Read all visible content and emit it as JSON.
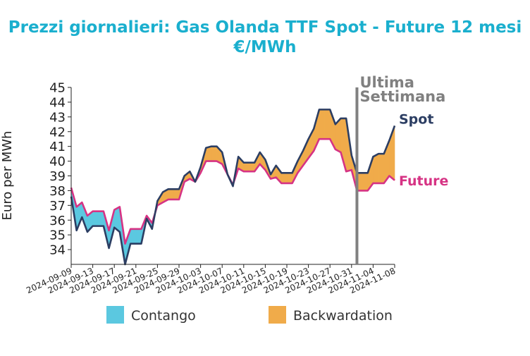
{
  "chart_data": {
    "type": "line",
    "title": "Prezzi giornalieri: Gas Olanda TTF Spot - Future 12 mesi",
    "subtitle": "€/MWh",
    "ylabel": "Euro per MWh",
    "xlabel": "",
    "ylim": [
      33,
      45
    ],
    "yticks": [
      34,
      35,
      36,
      37,
      38,
      39,
      40,
      41,
      42,
      43,
      44,
      45
    ],
    "xlim": [
      "2024-09-09",
      "2024-11-08"
    ],
    "xticks": [
      "2024-09-09",
      "2024-09-13",
      "2024-09-17",
      "2024-09-21",
      "2024-09-25",
      "2024-09-29",
      "2024-10-03",
      "2024-10-07",
      "2024-10-11",
      "2024-10-15",
      "2024-10-19",
      "2024-10-23",
      "2024-10-27",
      "2024-10-31",
      "2024-11-04",
      "2024-11-08"
    ],
    "grid": false,
    "legend_placement": "bottom",
    "colors": {
      "spot": "#2c3e63",
      "future": "#d63384",
      "contango": "#5bc8e0",
      "backwardation": "#f0ab4a",
      "vline": "#808080"
    },
    "legend": [
      {
        "label": "Contango",
        "color": "#5bc8e0"
      },
      {
        "label": "Backwardation",
        "color": "#f0ab4a"
      }
    ],
    "annotation": {
      "line1": "Ultima",
      "line2": "Settimana",
      "date": "2024-11-01"
    },
    "end_labels": {
      "spot": "Spot",
      "future": "Future"
    },
    "series": [
      {
        "name": "Spot",
        "points": [
          [
            "2024-09-09",
            37.6
          ],
          [
            "2024-09-10",
            35.3
          ],
          [
            "2024-09-11",
            36.2
          ],
          [
            "2024-09-12",
            35.2
          ],
          [
            "2024-09-13",
            35.6
          ],
          [
            "2024-09-14",
            35.6
          ],
          [
            "2024-09-15",
            35.6
          ],
          [
            "2024-09-16",
            34.1
          ],
          [
            "2024-09-17",
            35.5
          ],
          [
            "2024-09-18",
            35.2
          ],
          [
            "2024-09-19",
            33.0
          ],
          [
            "2024-09-20",
            34.4
          ],
          [
            "2024-09-21",
            34.4
          ],
          [
            "2024-09-22",
            34.4
          ],
          [
            "2024-09-23",
            36.1
          ],
          [
            "2024-09-24",
            35.4
          ],
          [
            "2024-09-25",
            37.3
          ],
          [
            "2024-09-26",
            37.9
          ],
          [
            "2024-09-27",
            38.1
          ],
          [
            "2024-09-28",
            38.1
          ],
          [
            "2024-09-29",
            38.1
          ],
          [
            "2024-09-30",
            39.0
          ],
          [
            "2024-10-01",
            39.3
          ],
          [
            "2024-10-02",
            38.6
          ],
          [
            "2024-10-03",
            39.6
          ],
          [
            "2024-10-04",
            40.9
          ],
          [
            "2024-10-05",
            41.0
          ],
          [
            "2024-10-06",
            41.0
          ],
          [
            "2024-10-07",
            40.6
          ],
          [
            "2024-10-08",
            39.1
          ],
          [
            "2024-10-09",
            38.3
          ],
          [
            "2024-10-10",
            40.3
          ],
          [
            "2024-10-11",
            39.9
          ],
          [
            "2024-10-12",
            39.9
          ],
          [
            "2024-10-13",
            39.9
          ],
          [
            "2024-10-14",
            40.6
          ],
          [
            "2024-10-15",
            40.1
          ],
          [
            "2024-10-16",
            39.1
          ],
          [
            "2024-10-17",
            39.7
          ],
          [
            "2024-10-18",
            39.2
          ],
          [
            "2024-10-19",
            39.2
          ],
          [
            "2024-10-20",
            39.2
          ],
          [
            "2024-10-21",
            40.0
          ],
          [
            "2024-10-22",
            40.7
          ],
          [
            "2024-10-23",
            41.5
          ],
          [
            "2024-10-24",
            42.2
          ],
          [
            "2024-10-25",
            43.5
          ],
          [
            "2024-10-26",
            43.5
          ],
          [
            "2024-10-27",
            43.5
          ],
          [
            "2024-10-28",
            42.5
          ],
          [
            "2024-10-29",
            42.9
          ],
          [
            "2024-10-30",
            42.9
          ],
          [
            "2024-10-31",
            40.4
          ],
          [
            "2024-11-01",
            39.2
          ],
          [
            "2024-11-02",
            39.2
          ],
          [
            "2024-11-03",
            39.2
          ],
          [
            "2024-11-04",
            40.3
          ],
          [
            "2024-11-05",
            40.5
          ],
          [
            "2024-11-06",
            40.5
          ],
          [
            "2024-11-07",
            41.4
          ],
          [
            "2024-11-08",
            42.4
          ]
        ]
      },
      {
        "name": "Future",
        "points": [
          [
            "2024-09-09",
            38.2
          ],
          [
            "2024-09-10",
            36.9
          ],
          [
            "2024-09-11",
            37.2
          ],
          [
            "2024-09-12",
            36.3
          ],
          [
            "2024-09-13",
            36.6
          ],
          [
            "2024-09-14",
            36.6
          ],
          [
            "2024-09-15",
            36.6
          ],
          [
            "2024-09-16",
            35.3
          ],
          [
            "2024-09-17",
            36.7
          ],
          [
            "2024-09-18",
            36.9
          ],
          [
            "2024-09-19",
            34.4
          ],
          [
            "2024-09-20",
            35.4
          ],
          [
            "2024-09-21",
            35.4
          ],
          [
            "2024-09-22",
            35.4
          ],
          [
            "2024-09-23",
            36.3
          ],
          [
            "2024-09-24",
            35.8
          ],
          [
            "2024-09-25",
            37.0
          ],
          [
            "2024-09-26",
            37.2
          ],
          [
            "2024-09-27",
            37.4
          ],
          [
            "2024-09-28",
            37.4
          ],
          [
            "2024-09-29",
            37.4
          ],
          [
            "2024-09-30",
            38.6
          ],
          [
            "2024-10-01",
            38.8
          ],
          [
            "2024-10-02",
            38.6
          ],
          [
            "2024-10-03",
            39.2
          ],
          [
            "2024-10-04",
            40.0
          ],
          [
            "2024-10-05",
            40.0
          ],
          [
            "2024-10-06",
            40.0
          ],
          [
            "2024-10-07",
            39.8
          ],
          [
            "2024-10-08",
            39.1
          ],
          [
            "2024-10-09",
            38.4
          ],
          [
            "2024-10-10",
            39.5
          ],
          [
            "2024-10-11",
            39.3
          ],
          [
            "2024-10-12",
            39.3
          ],
          [
            "2024-10-13",
            39.3
          ],
          [
            "2024-10-14",
            39.8
          ],
          [
            "2024-10-15",
            39.4
          ],
          [
            "2024-10-16",
            38.8
          ],
          [
            "2024-10-17",
            38.9
          ],
          [
            "2024-10-18",
            38.5
          ],
          [
            "2024-10-19",
            38.5
          ],
          [
            "2024-10-20",
            38.5
          ],
          [
            "2024-10-21",
            39.2
          ],
          [
            "2024-10-22",
            39.7
          ],
          [
            "2024-10-23",
            40.2
          ],
          [
            "2024-10-24",
            40.7
          ],
          [
            "2024-10-25",
            41.5
          ],
          [
            "2024-10-26",
            41.5
          ],
          [
            "2024-10-27",
            41.5
          ],
          [
            "2024-10-28",
            40.8
          ],
          [
            "2024-10-29",
            40.6
          ],
          [
            "2024-10-30",
            39.3
          ],
          [
            "2024-10-31",
            39.4
          ],
          [
            "2024-11-01",
            38.0
          ],
          [
            "2024-11-02",
            38.0
          ],
          [
            "2024-11-03",
            38.0
          ],
          [
            "2024-11-04",
            38.5
          ],
          [
            "2024-11-05",
            38.5
          ],
          [
            "2024-11-06",
            38.5
          ],
          [
            "2024-11-07",
            39.0
          ],
          [
            "2024-11-08",
            38.7
          ]
        ]
      }
    ]
  }
}
